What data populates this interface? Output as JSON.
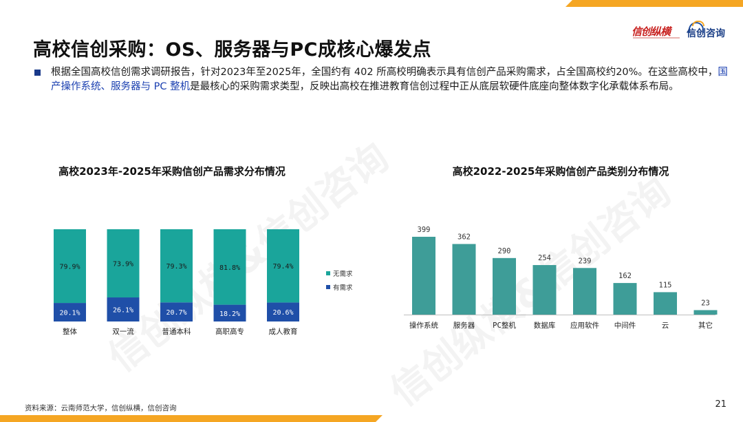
{
  "page": {
    "title": "高校信创采购：OS、服务器与PC成核心爆发点",
    "paragraph": {
      "part1": "根据全国高校信创需求调研报告，针对2023年至2025年，全国约有 402 所高校明确表示具有信创产品采购需求，占全国高校约20%。在这些高校中，",
      "highlight": "国产操作系统、服务器与 PC 整机",
      "part2": "是最核心的采购需求类型，反映出高校在推进教育信创过程中正从底层软硬件底座向整体数字化承载体系布局。"
    },
    "source": "资料来源：云南师范大学，信创纵横，信创咨询",
    "page_number": "21",
    "logos": {
      "brand1": "信创纵横",
      "brand2": "信创咨询"
    },
    "watermark": "信创纵横&信创咨询"
  },
  "colors": {
    "teal": "#1aa59b",
    "blue": "#1f4fa8",
    "bar_teal": "#3e9d98",
    "accent": "#f5a623"
  },
  "chart_data": [
    {
      "type": "bar",
      "stacked": true,
      "title": "高校2023年-2025年采购信创产品需求分布情况",
      "categories": [
        "整体",
        "双一流",
        "普通本科",
        "高职高专",
        "成人教育"
      ],
      "series": [
        {
          "name": "有需求",
          "values": [
            20.1,
            26.1,
            20.7,
            18.2,
            20.6
          ],
          "labels": [
            "20.1%",
            "26.1%",
            "20.7%",
            "18.2%",
            "20.6%"
          ],
          "color": "#1f4fa8"
        },
        {
          "name": "无需求",
          "values": [
            79.9,
            73.9,
            79.3,
            81.8,
            79.4
          ],
          "labels": [
            "79.9%",
            "73.9%",
            "79.3%",
            "81.8%",
            "79.4%"
          ],
          "color": "#1aa59b"
        }
      ],
      "legend": "right",
      "ylim": [
        0,
        100
      ]
    },
    {
      "type": "bar",
      "title": "高校2022-2025年采购信创产品类别分布情况",
      "categories": [
        "操作系统",
        "服务器",
        "PC整机",
        "数据库",
        "应用软件",
        "中间件",
        "云",
        "其它"
      ],
      "values": [
        399,
        362,
        290,
        254,
        239,
        162,
        115,
        23
      ],
      "color": "#3e9d98",
      "ylim": [
        0,
        420
      ]
    }
  ]
}
